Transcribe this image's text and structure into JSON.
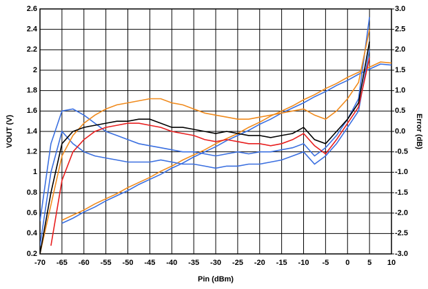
{
  "chart_data": {
    "type": "line",
    "x_label": "Pin (dBm)",
    "y_label": "VOUT (V)",
    "y2_label": "Error (dB)",
    "x": [
      -70,
      -67.5,
      -65,
      -62.5,
      -60,
      -57.5,
      -55,
      -52.5,
      -50,
      -47.5,
      -45,
      -42.5,
      -40,
      -37.5,
      -35,
      -32.5,
      -30,
      -27.5,
      -25,
      -22.5,
      -20,
      -17.5,
      -15,
      -12.5,
      -10,
      -7.5,
      -5,
      -2.5,
      0,
      2.5,
      5,
      7.5,
      10
    ],
    "xlim": [
      -70,
      10
    ],
    "xticks": [
      -70,
      -65,
      -60,
      -55,
      -50,
      -45,
      -40,
      -35,
      -30,
      -25,
      -20,
      -15,
      -10,
      -5,
      0,
      5,
      10
    ],
    "ylim": [
      0.2,
      2.6
    ],
    "yticks": [
      0.2,
      0.4,
      0.6,
      0.8,
      1,
      1.2,
      1.4,
      1.6,
      1.8,
      2,
      2.2,
      2.4,
      2.6
    ],
    "y2lim": [
      -3.0,
      3.0
    ],
    "y2ticks": [
      {
        "value": -3,
        "label": "-3.0"
      },
      -2.5,
      {
        "value": -2,
        "label": "-2.0"
      },
      -1.5,
      {
        "value": -1,
        "label": "-1.0"
      },
      -0.5,
      {
        "value": 0,
        "label": "0.0"
      },
      0.5,
      {
        "value": 1,
        "label": "1.0"
      },
      1.5,
      {
        "value": 2,
        "label": "2.0"
      },
      2.5,
      {
        "value": 3,
        "label": "3.0"
      }
    ],
    "grid": true,
    "series": [
      {
        "color": "#3a6fe0",
        "values": [
          null,
          null,
          0.5,
          0.55,
          0.61,
          0.66,
          0.72,
          0.77,
          0.82,
          0.88,
          0.93,
          0.98,
          1.04,
          1.09,
          1.15,
          1.2,
          1.25,
          1.31,
          1.36,
          1.41,
          1.47,
          1.52,
          1.58,
          1.63,
          1.68,
          1.74,
          1.79,
          1.85,
          1.9,
          1.96,
          2.01,
          2.06,
          2.05
        ]
      },
      {
        "color": "#f08a1c",
        "values": [
          null,
          null,
          0.53,
          0.58,
          0.63,
          0.69,
          0.74,
          0.79,
          0.85,
          0.9,
          0.95,
          1.01,
          1.06,
          1.12,
          1.17,
          1.22,
          1.28,
          1.33,
          1.38,
          1.44,
          1.49,
          1.55,
          1.6,
          1.65,
          1.71,
          1.76,
          1.82,
          1.87,
          1.93,
          1.98,
          2.03,
          2.08,
          2.07
        ]
      },
      {
        "color": "#3a6fe0",
        "axis": "y2",
        "values": [
          -2.8,
          -1.0,
          0.0,
          -0.3,
          -0.5,
          -0.6,
          -0.65,
          -0.7,
          -0.75,
          -0.75,
          -0.75,
          -0.7,
          -0.75,
          -0.8,
          -0.8,
          -0.85,
          -0.9,
          -0.85,
          -0.85,
          -0.8,
          -0.8,
          -0.75,
          -0.7,
          -0.6,
          -0.5,
          -0.8,
          -0.6,
          -0.3,
          0.1,
          0.5,
          2.0,
          null,
          null
        ]
      },
      {
        "color": "#3a6fe0",
        "axis": "y2",
        "values": [
          -2.2,
          -0.3,
          0.5,
          0.55,
          0.4,
          0.2,
          0.0,
          -0.1,
          -0.2,
          -0.3,
          -0.35,
          -0.4,
          -0.45,
          -0.5,
          -0.5,
          -0.55,
          -0.6,
          -0.55,
          -0.5,
          -0.55,
          -0.5,
          -0.5,
          -0.45,
          -0.4,
          -0.3,
          -0.6,
          -0.4,
          -0.1,
          0.3,
          0.8,
          2.8,
          null,
          null
        ]
      },
      {
        "color": "#f08a1c",
        "axis": "y2",
        "values": [
          -3.0,
          -1.8,
          -0.6,
          -0.1,
          0.2,
          0.4,
          0.55,
          0.65,
          0.7,
          0.75,
          0.8,
          0.8,
          0.7,
          0.65,
          0.55,
          0.45,
          0.4,
          0.35,
          0.3,
          0.3,
          0.35,
          0.4,
          0.45,
          0.5,
          0.55,
          0.4,
          0.3,
          0.5,
          0.8,
          1.2,
          2.5,
          null,
          null
        ]
      },
      {
        "color": "#e81e1e",
        "axis": "y2",
        "values": [
          null,
          -2.8,
          -1.2,
          -0.5,
          -0.2,
          0.0,
          0.1,
          0.15,
          0.2,
          0.2,
          0.15,
          0.1,
          0.0,
          -0.05,
          -0.1,
          -0.2,
          -0.25,
          -0.2,
          -0.25,
          -0.3,
          -0.3,
          -0.35,
          -0.3,
          -0.2,
          -0.05,
          -0.35,
          -0.55,
          -0.2,
          0.2,
          0.6,
          1.8,
          null,
          null
        ]
      },
      {
        "color": "#000000",
        "axis": "y2",
        "values": [
          -3.0,
          -1.5,
          -0.3,
          0.0,
          0.1,
          0.15,
          0.2,
          0.25,
          0.25,
          0.3,
          0.3,
          0.2,
          0.1,
          0.1,
          0.05,
          0.0,
          -0.05,
          0.0,
          -0.05,
          -0.1,
          -0.1,
          -0.15,
          -0.1,
          -0.05,
          0.1,
          -0.2,
          -0.3,
          0.0,
          0.3,
          0.7,
          2.2,
          null,
          null
        ]
      }
    ]
  }
}
